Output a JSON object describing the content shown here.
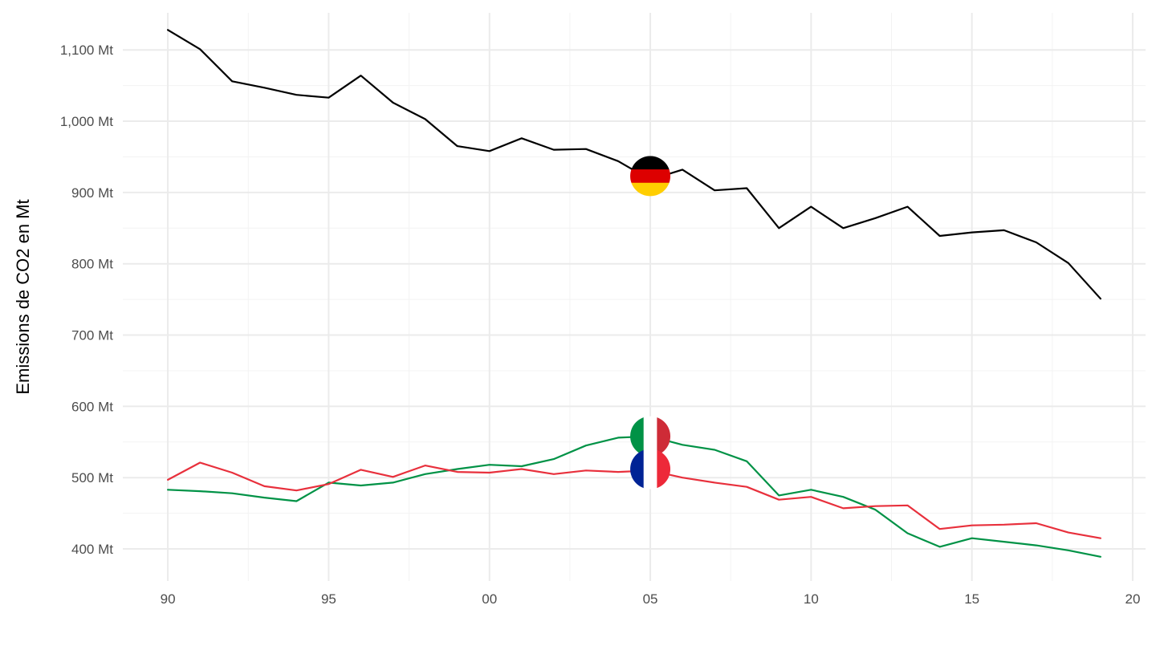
{
  "chart_data": {
    "type": "line",
    "title": "",
    "xlabel": "",
    "ylabel": "Emissions de CO2 en Mt",
    "xlim": [
      1988.6,
      2020.4
    ],
    "ylim": [
      355,
      1152
    ],
    "x_ticks": [
      1990,
      1995,
      2000,
      2005,
      2010,
      2015,
      2020
    ],
    "x_tick_labels": [
      "90",
      "95",
      "00",
      "05",
      "10",
      "15",
      "20"
    ],
    "y_ticks": [
      400,
      500,
      600,
      700,
      800,
      900,
      1000,
      1100
    ],
    "y_tick_labels": [
      "400 Mt",
      "500 Mt",
      "600 Mt",
      "700 Mt",
      "800 Mt",
      "900 Mt",
      "1,000 Mt",
      "1,100 Mt"
    ],
    "grid": true,
    "legend": "flag markers on each series at 2005",
    "x": [
      1990,
      1991,
      1992,
      1993,
      1994,
      1995,
      1996,
      1997,
      1998,
      1999,
      2000,
      2001,
      2002,
      2003,
      2004,
      2005,
      2006,
      2007,
      2008,
      2009,
      2010,
      2011,
      2012,
      2013,
      2014,
      2015,
      2016,
      2017,
      2018,
      2019
    ],
    "series": [
      {
        "color": "#000000",
        "flag": "germany-flag-icon",
        "values": [
          1128,
          1101,
          1056,
          1047,
          1037,
          1033,
          1064,
          1026,
          1003,
          965,
          958,
          976,
          960,
          961,
          944,
          918,
          932,
          903,
          906,
          850,
          880,
          850,
          864,
          880,
          839,
          844,
          847,
          830,
          801,
          751
        ]
      },
      {
        "color": "#009246",
        "flag": "italy-flag-icon",
        "values": [
          483,
          481,
          478,
          472,
          467,
          493,
          489,
          493,
          505,
          512,
          518,
          516,
          526,
          545,
          556,
          558,
          546,
          539,
          523,
          475,
          483,
          473,
          455,
          422,
          403,
          415,
          410,
          405,
          398,
          389
        ]
      },
      {
        "color": "#e8303c",
        "flag": "france-flag-icon",
        "values": [
          497,
          521,
          507,
          488,
          482,
          491,
          511,
          501,
          517,
          508,
          507,
          512,
          505,
          510,
          508,
          510,
          500,
          493,
          487,
          469,
          473,
          457,
          460,
          461,
          428,
          433,
          434,
          436,
          423,
          415
        ]
      }
    ],
    "flag_markers": [
      {
        "x": 2005,
        "y": 923,
        "icon": "germany-flag-icon",
        "colors": [
          "#000000",
          "#dd0000",
          "#ffce00"
        ]
      },
      {
        "x": 2005,
        "y": 558,
        "icon": "italy-flag-icon",
        "colors": [
          "#009246",
          "#ffffff",
          "#ce2b37"
        ]
      },
      {
        "x": 2005,
        "y": 512,
        "icon": "france-flag-icon",
        "colors": [
          "#002395",
          "#ffffff",
          "#ed2939"
        ]
      }
    ]
  }
}
